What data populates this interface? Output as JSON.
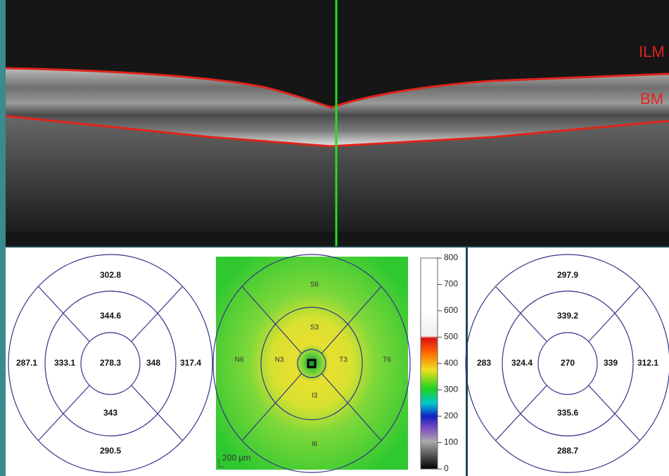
{
  "oct_scan": {
    "labels": {
      "ilm": "ILM",
      "bm": "BM"
    }
  },
  "left_map": {
    "superior_outer": 302.8,
    "superior_inner": 344.6,
    "nasal_outer": 287.1,
    "nasal_inner": 333.1,
    "center": 278.3,
    "temporal_inner": 348,
    "temporal_outer": 317.4,
    "inferior_inner": 343,
    "inferior_outer": 290.5
  },
  "thickness_map": {
    "sectors": {
      "s6": "S6",
      "s3": "S3",
      "n6": "N6",
      "n3": "N3",
      "t3": "T3",
      "t6": "T6",
      "i3": "I3",
      "i6": "I6"
    },
    "scale_bar": "200 µm"
  },
  "colorbar": {
    "range": [
      0,
      800
    ],
    "ticks": [
      0,
      100,
      200,
      300,
      400,
      500,
      600,
      700,
      800
    ]
  },
  "right_map": {
    "superior_outer": 297.9,
    "superior_inner": 339.2,
    "nasal_outer": 283,
    "nasal_inner": 324.4,
    "center": 270,
    "temporal_inner": 339,
    "temporal_outer": 312.1,
    "inferior_inner": 335.6,
    "inferior_outer": 288.7
  }
}
